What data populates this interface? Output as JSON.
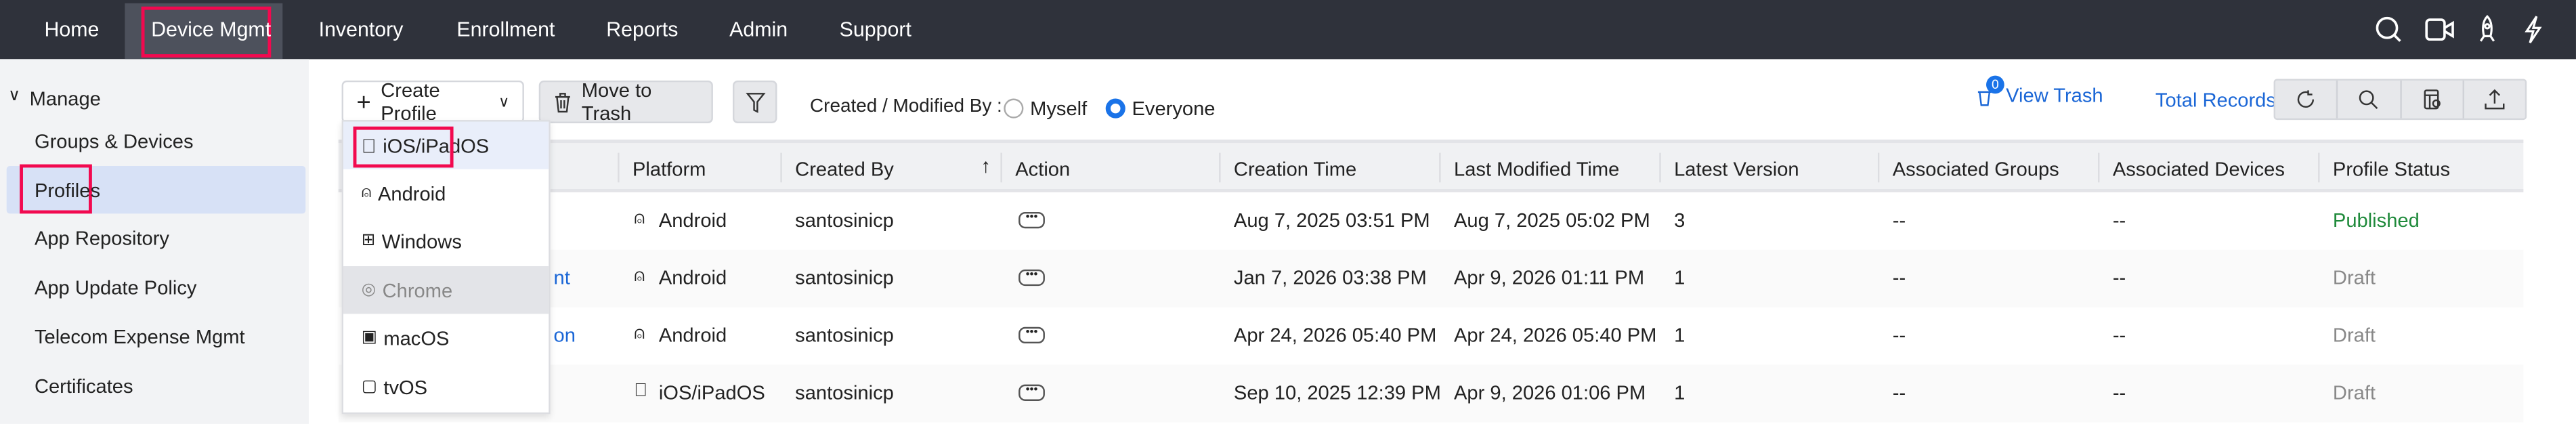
{
  "nav": {
    "items": [
      "Home",
      "Device Mgmt",
      "Inventory",
      "Enrollment",
      "Reports",
      "Admin",
      "Support"
    ],
    "active": "Device Mgmt",
    "icons": [
      "search-icon",
      "video-icon",
      "rocket-icon",
      "lightning-icon"
    ]
  },
  "sidebar": {
    "section": "Manage",
    "items": [
      "Groups & Devices",
      "Profiles",
      "App Repository",
      "App Update Policy",
      "Telecom Expense Mgmt",
      "Certificates"
    ],
    "active": "Profiles"
  },
  "toolbar": {
    "create": "Create Profile",
    "trash": "Move to Trash",
    "created_by_label": "Created / Modified By :",
    "myself": "Myself",
    "everyone": "Everyone",
    "selected": "Everyone",
    "trash_count": "0",
    "view_trash": "View Trash",
    "total_records": "Total Records"
  },
  "dropdown": {
    "items": [
      "iOS/iPadOS",
      "Android",
      "Windows",
      "Chrome",
      "macOS",
      "tvOS"
    ],
    "highlighted": "iOS/iPadOS",
    "disabled": "Chrome"
  },
  "table": {
    "headers": [
      "Platform",
      "Created By",
      "Action",
      "Creation Time",
      "Last Modified Time",
      "Latest Version",
      "Associated Groups",
      "Associated Devices",
      "Profile Status"
    ],
    "rows": [
      {
        "name": "",
        "platform": "Android",
        "created_by": "santosinicp",
        "creation": "Aug 7, 2025 03:51 PM",
        "modified": "Aug 7, 2025 05:02 PM",
        "version": "3",
        "groups": "--",
        "devices": "--",
        "status": "Published"
      },
      {
        "name": "nt",
        "platform": "Android",
        "created_by": "santosinicp",
        "creation": "Jan 7, 2026 03:38 PM",
        "modified": "Apr 9, 2026 01:11 PM",
        "version": "1",
        "groups": "--",
        "devices": "--",
        "status": "Draft"
      },
      {
        "name": "on",
        "platform": "Android",
        "created_by": "santosinicp",
        "creation": "Apr 24, 2026 05:40 PM",
        "modified": "Apr 24, 2026 05:40 PM",
        "version": "1",
        "groups": "--",
        "devices": "--",
        "status": "Draft"
      },
      {
        "name": "",
        "platform": "iOS/iPadOS",
        "created_by": "santosinicp",
        "creation": "Sep 10, 2025 12:39 PM",
        "modified": "Apr 9, 2026 01:06 PM",
        "version": "1",
        "groups": "--",
        "devices": "--",
        "status": "Draft"
      }
    ]
  },
  "colors": {
    "nav_bg": "#2f323b",
    "accent": "#1a73e8",
    "highlight": "#f2094f",
    "published": "#1f8a3b",
    "draft": "#888888"
  }
}
